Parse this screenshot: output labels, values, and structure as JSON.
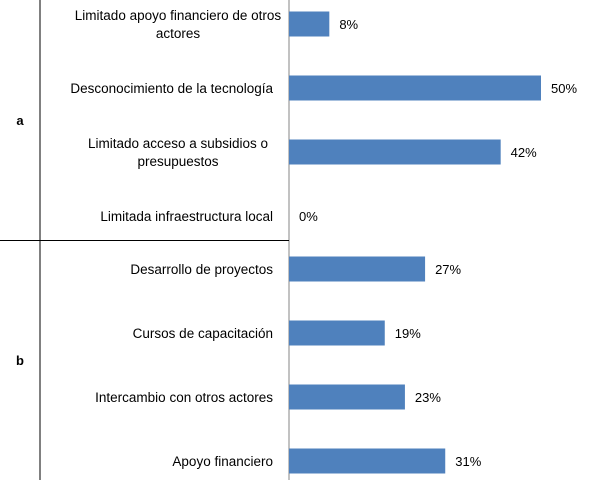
{
  "chart_data": {
    "type": "bar",
    "orientation": "horizontal",
    "bar_color": "#4F81BD",
    "groups": [
      {
        "label": "a",
        "categories": [
          [
            "Limitado apoyo financiero de otros",
            "actores"
          ],
          [
            "Desconocimiento de la tecnología"
          ],
          [
            "Limitado acceso a subsidios o",
            "presupuestos"
          ],
          [
            "Limitada infraestructura local"
          ]
        ],
        "values": [
          8,
          50,
          42,
          0
        ],
        "value_labels": [
          "8%",
          "50%",
          "42%",
          "0%"
        ]
      },
      {
        "label": "b",
        "categories": [
          [
            "Desarrollo de proyectos"
          ],
          [
            "Cursos de capacitación"
          ],
          [
            "Intercambio con otros actores"
          ],
          [
            "Apoyo financiero"
          ]
        ],
        "values": [
          27,
          19,
          23,
          31
        ],
        "value_labels": [
          "27%",
          "19%",
          "23%",
          "31%"
        ]
      }
    ],
    "xlim": [
      0,
      50
    ],
    "grid": false,
    "legend": "none"
  }
}
